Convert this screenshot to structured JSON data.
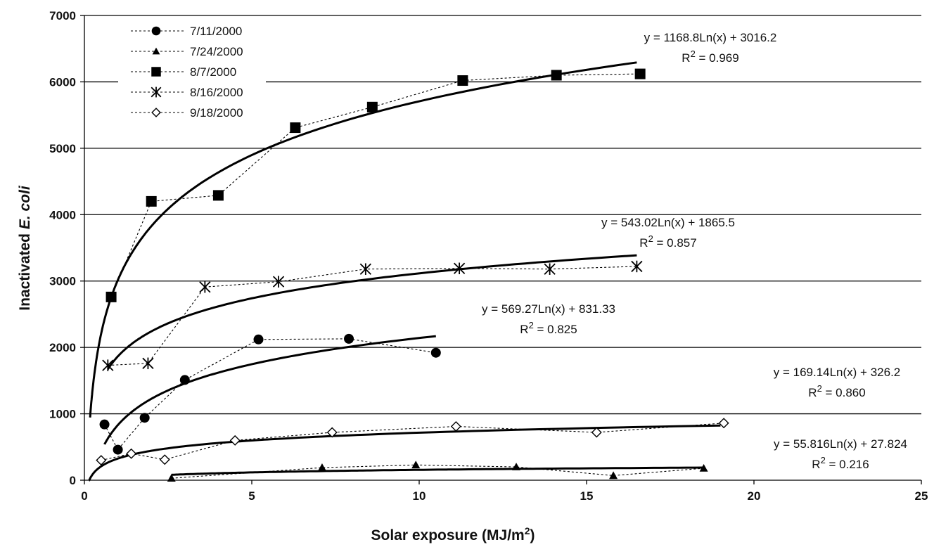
{
  "chart_data": {
    "type": "scatter",
    "title": "",
    "xlabel": "Solar exposure (MJ/m",
    "xlabel_sup": "2",
    "xlabel_end": ")",
    "ylabel_prefix": "Inactivated ",
    "ylabel_italic": "E. coli",
    "xlim": [
      0,
      25
    ],
    "ylim": [
      0,
      7000
    ],
    "x_ticks": [
      0,
      5,
      10,
      15,
      20,
      25
    ],
    "y_ticks": [
      0,
      1000,
      2000,
      3000,
      4000,
      5000,
      6000,
      7000
    ],
    "grid": "horizontal",
    "legend_position": "top-left",
    "series": [
      {
        "name": "7/11/2000",
        "marker": "circle",
        "x": [
          0.6,
          1.0,
          1.8,
          3.0,
          5.2,
          7.9,
          10.5
        ],
        "y": [
          840,
          460,
          940,
          1510,
          2120,
          2130,
          1920
        ],
        "fit": {
          "a": 569.27,
          "b": 831.33,
          "x_range": [
            0.6,
            10.5
          ],
          "label": "y = 569.27Ln(x) + 831.33",
          "r2_prefix": "R",
          "r2_sup": "2",
          "r2_value": " = 0.825"
        }
      },
      {
        "name": "7/24/2000",
        "marker": "triangle",
        "x": [
          2.6,
          7.1,
          9.9,
          12.9,
          15.8,
          18.5
        ],
        "y": [
          30,
          190,
          230,
          200,
          70,
          180
        ],
        "fit": {
          "a": 55.816,
          "b": 27.824,
          "x_range": [
            2.6,
            18.5
          ],
          "label": "y = 55.816Ln(x) + 27.824",
          "r2_prefix": "R",
          "r2_sup": "2",
          "r2_value": " = 0.216"
        }
      },
      {
        "name": "8/7/2000",
        "marker": "square",
        "x": [
          0.8,
          2.0,
          4.0,
          6.3,
          8.6,
          11.3,
          14.1,
          16.6
        ],
        "y": [
          2760,
          4200,
          4290,
          5310,
          5620,
          6020,
          6100,
          6120
        ],
        "fit": {
          "a": 1168.8,
          "b": 3016.2,
          "x_range": [
            0.17,
            16.5
          ],
          "label": "y = 1168.8Ln(x) + 3016.2",
          "r2_prefix": "R",
          "r2_sup": "2",
          "r2_value": " = 0.969"
        }
      },
      {
        "name": "8/16/2000",
        "marker": "star",
        "x": [
          0.7,
          1.9,
          3.6,
          5.8,
          8.4,
          11.2,
          13.9,
          16.5
        ],
        "y": [
          1730,
          1760,
          2910,
          2990,
          3180,
          3190,
          3180,
          3220
        ],
        "fit": {
          "a": 543.02,
          "b": 1865.5,
          "x_range": [
            0.7,
            16.5
          ],
          "label": "y = 543.02Ln(x) + 1865.5",
          "r2_prefix": "R",
          "r2_sup": "2",
          "r2_value": " = 0.857"
        }
      },
      {
        "name": "9/18/2000",
        "marker": "diamond",
        "x": [
          0.5,
          1.4,
          2.4,
          4.5,
          7.4,
          11.1,
          15.3,
          19.1
        ],
        "y": [
          300,
          400,
          310,
          600,
          720,
          810,
          720,
          860
        ],
        "fit": {
          "a": 169.14,
          "b": 326.2,
          "x_range": [
            0.14,
            19.0
          ],
          "label": "y = 169.14Ln(x) + 326.2",
          "r2_prefix": "R",
          "r2_sup": "2",
          "r2_value": " = 0.860"
        }
      }
    ]
  }
}
